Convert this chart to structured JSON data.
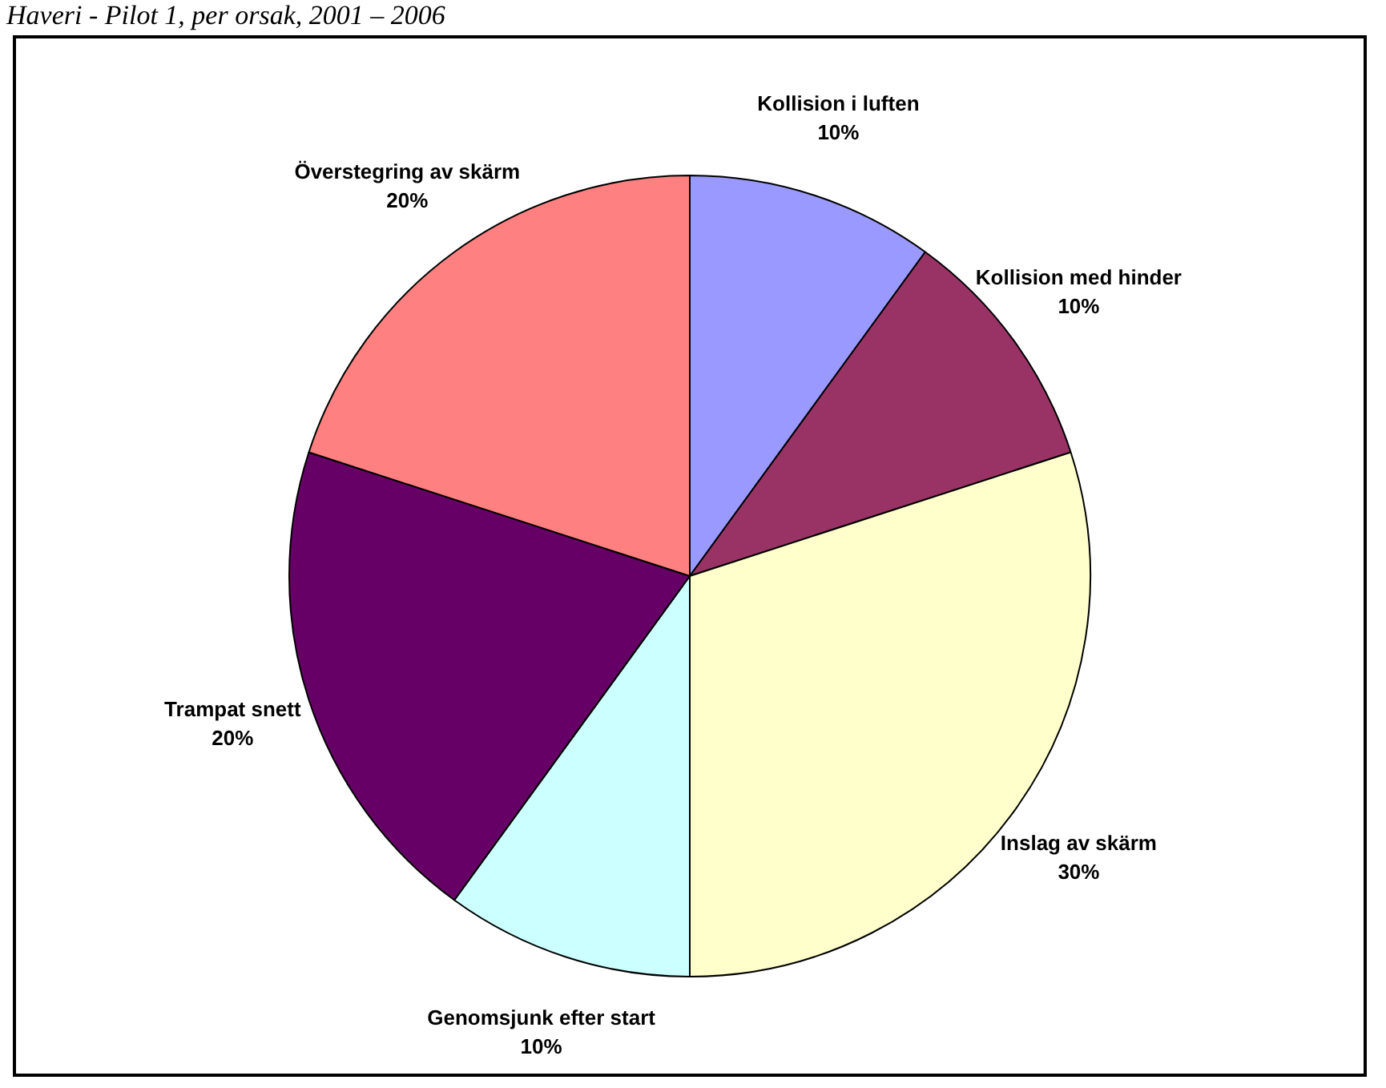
{
  "chart_data": {
    "type": "pie",
    "title": "Haveri - Pilot 1, per orsak, 2001 – 2006",
    "categories": [
      "Kollision i luften",
      "Kollision med hinder",
      "Inslag av skärm",
      "Genomsjunk efter start",
      "Trampat snett",
      "Överstegring av skärm"
    ],
    "values": [
      10,
      10,
      30,
      10,
      20,
      20
    ],
    "colors": [
      "#9999ff",
      "#993366",
      "#ffffcc",
      "#ccffff",
      "#660066",
      "#ff8080"
    ],
    "value_labels": [
      "10%",
      "10%",
      "30%",
      "10%",
      "20%",
      "20%"
    ],
    "legend": false
  }
}
